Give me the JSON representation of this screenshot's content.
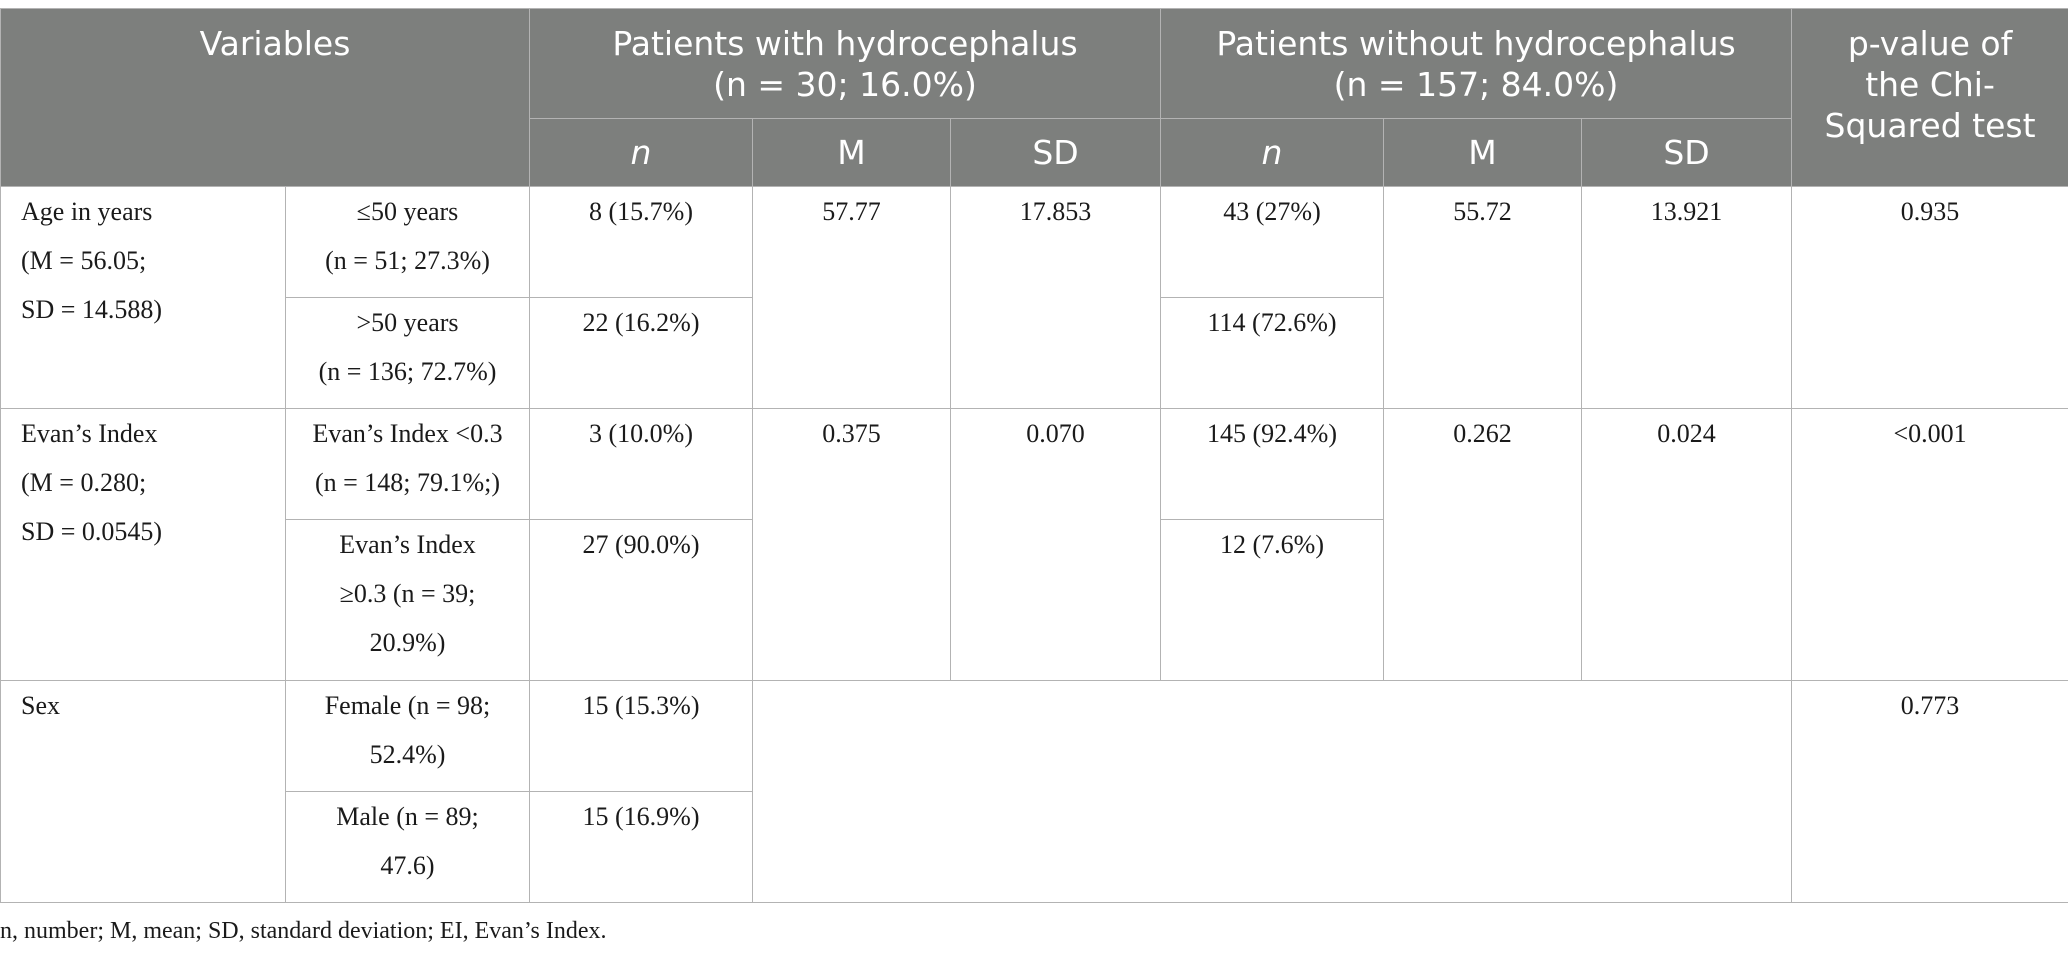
{
  "header": {
    "variables": "Variables",
    "group_with_line1": "Patients with hydrocephalus",
    "group_with_line2": "(n = 30; 16.0%)",
    "group_without_line1": "Patients without hydrocephalus",
    "group_without_line2": "(n = 157; 84.0%)",
    "pvalue_line1": "p-value of",
    "pvalue_line2": "the Chi-",
    "pvalue_line3": "Squared test",
    "sub_n": "n",
    "sub_m": "M",
    "sub_sd": "SD"
  },
  "rows": {
    "age": {
      "label_line1": "Age in years",
      "label_line2": "(M = 56.05;",
      "label_line3": "SD = 14.588)",
      "sub1_line1": "≤50 years",
      "sub1_line2": "(n = 51; 27.3%)",
      "sub2_line1": ">50 years",
      "sub2_line2": "(n = 136; 72.7%)",
      "with_n1": "8 (15.7%)",
      "with_n2": "22 (16.2%)",
      "with_m": "57.77",
      "with_sd": "17.853",
      "without_n1": "43 (27%)",
      "without_n2": "114 (72.6%)",
      "without_m": "55.72",
      "without_sd": "13.921",
      "pvalue": "0.935"
    },
    "evans": {
      "label_line1": "Evan’s Index",
      "label_line2": "(M = 0.280;",
      "label_line3": "SD = 0.0545)",
      "sub1_line1": "Evan’s Index <0.3",
      "sub1_line2": "(n = 148; 79.1%;)",
      "sub2_line1": "Evan’s Index",
      "sub2_line2": "≥0.3 (n = 39;",
      "sub2_line3": "20.9%)",
      "with_n1": "3 (10.0%)",
      "with_n2": "27 (90.0%)",
      "with_m": "0.375",
      "with_sd": "0.070",
      "without_n1": "145 (92.4%)",
      "without_n2": "12 (7.6%)",
      "without_m": "0.262",
      "without_sd": "0.024",
      "pvalue": "<0.001"
    },
    "sex": {
      "label": "Sex",
      "sub1_line1": "Female (n = 98;",
      "sub1_line2": "52.4%)",
      "sub2_line1": "Male (n = 89;",
      "sub2_line2": "47.6)",
      "with_n1": "15 (15.3%)",
      "with_n2": "15 (16.9%)",
      "pvalue": "0.773"
    }
  },
  "footnote": "n, number; M, mean; SD, standard deviation; EI, Evan’s Index."
}
